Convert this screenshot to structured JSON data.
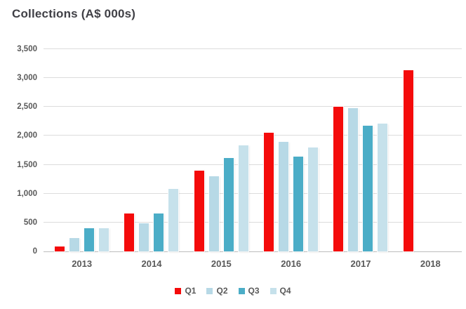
{
  "title": "Collections (A$ 000s)",
  "chart_data": {
    "type": "bar",
    "title": "Collections (A$ 000s)",
    "categories": [
      "2013",
      "2014",
      "2015",
      "2016",
      "2017",
      "2018"
    ],
    "series": [
      {
        "name": "Q1",
        "color": "#f40b0b",
        "values": [
          90,
          660,
          1400,
          2050,
          2500,
          3130
        ]
      },
      {
        "name": "Q2",
        "color": "#b7d9e6",
        "values": [
          230,
          490,
          1300,
          1890,
          2480,
          null
        ]
      },
      {
        "name": "Q3",
        "color": "#4badc7",
        "values": [
          400,
          660,
          1620,
          1640,
          2170,
          null
        ]
      },
      {
        "name": "Q4",
        "color": "#c6e1eb",
        "values": [
          400,
          1080,
          1840,
          1800,
          2210,
          null
        ]
      }
    ],
    "ylim": [
      0,
      3500
    ],
    "yticks": [
      {
        "value": 0,
        "label": "0"
      },
      {
        "value": 500,
        "label": "500"
      },
      {
        "value": 1000,
        "label": "1,000"
      },
      {
        "value": 1500,
        "label": "1,500"
      },
      {
        "value": 2000,
        "label": "2,000"
      },
      {
        "value": 2500,
        "label": "2,500"
      },
      {
        "value": 3000,
        "label": "3,000"
      },
      {
        "value": 3500,
        "label": "3,500"
      }
    ],
    "grid": true,
    "legend_position": "bottom",
    "styles": {
      "grid_color": "#dcdcdc",
      "axis_color": "#bdbdbd",
      "label_color": "#595959",
      "title_color": "#404046",
      "background": "#ffffff"
    }
  }
}
